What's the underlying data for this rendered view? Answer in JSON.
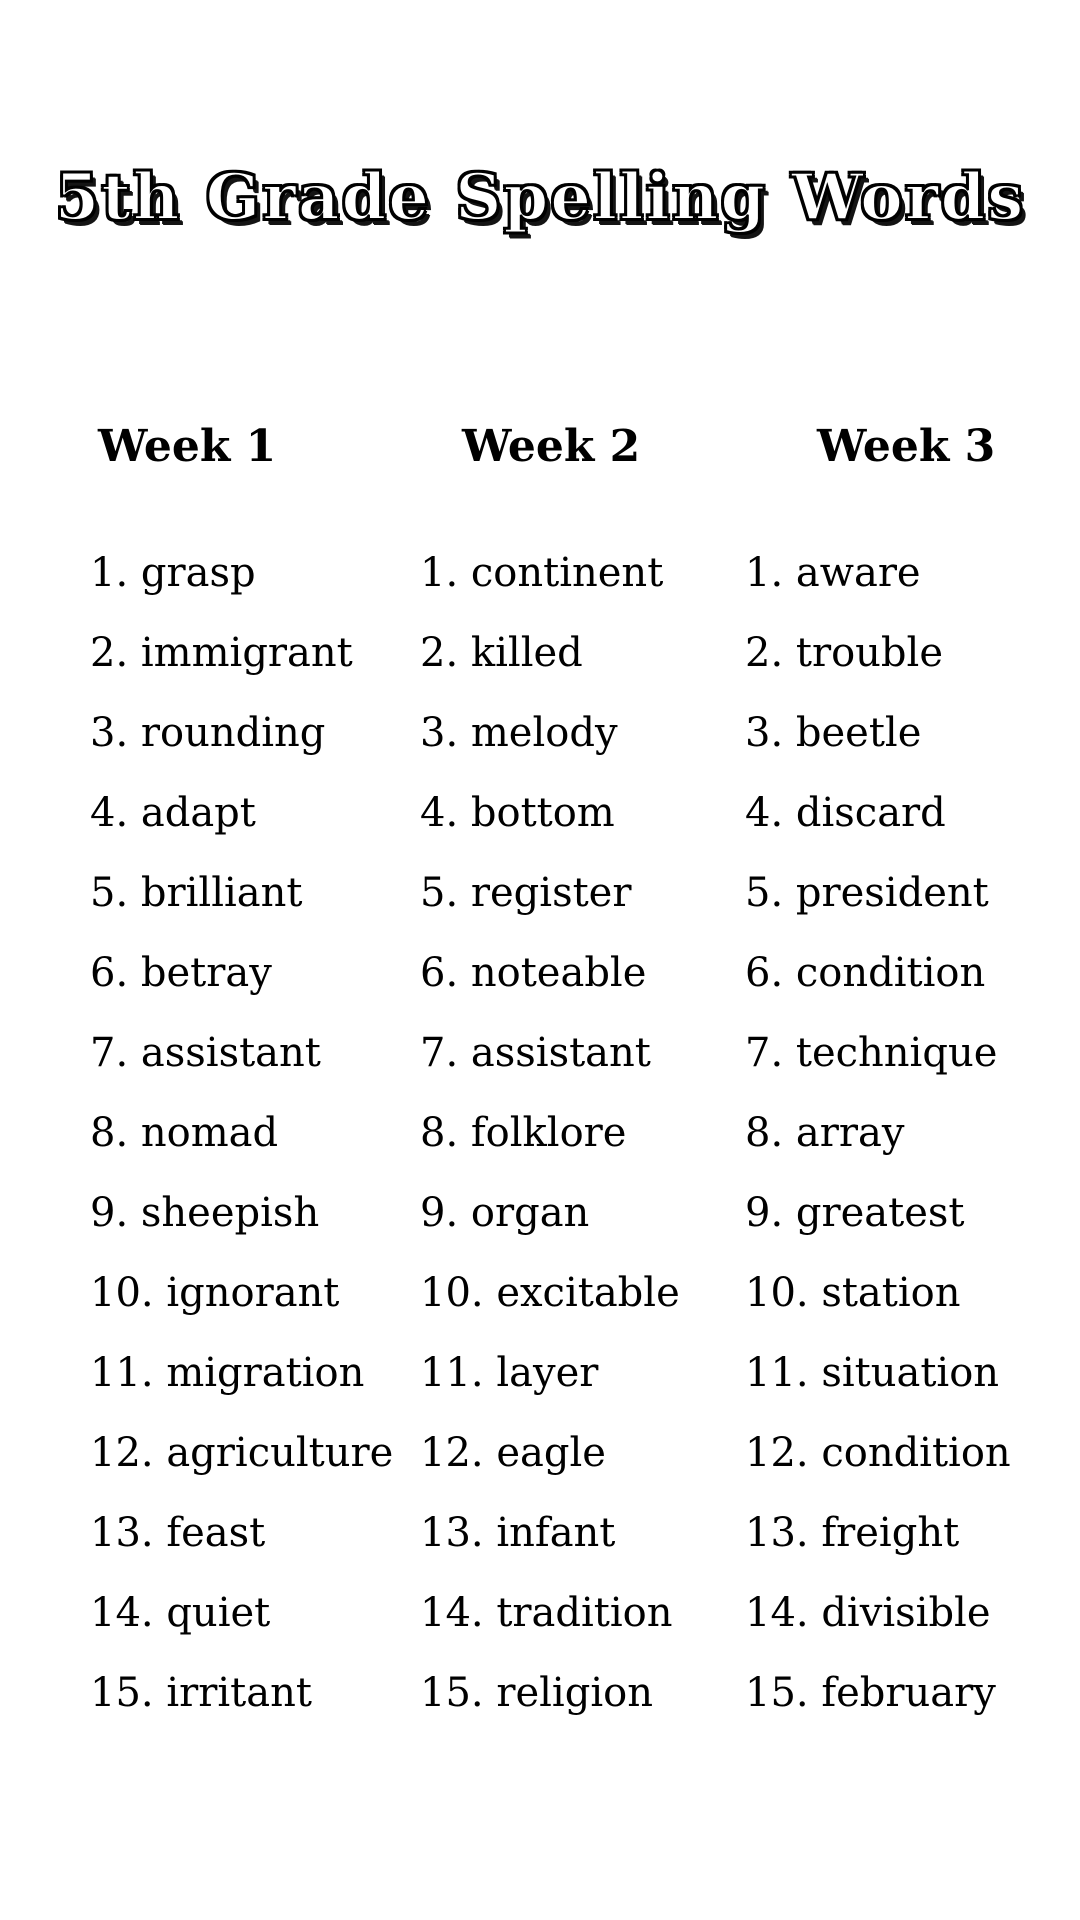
{
  "document": {
    "title": "5th Grade Spelling Words",
    "columns": [
      {
        "header": "Week 1",
        "words": [
          "grasp",
          "immigrant",
          "rounding",
          "adapt",
          "brilliant",
          "betray",
          "assistant",
          "nomad",
          "sheepish",
          "ignorant",
          "migration",
          "agriculture",
          "feast",
          "quiet",
          "irritant"
        ]
      },
      {
        "header": "Week 2",
        "words": [
          "continent",
          "killed",
          "melody",
          "bottom",
          "register",
          "noteable",
          "assistant",
          "folklore",
          "organ",
          "excitable",
          "layer",
          "eagle",
          "infant",
          "tradition",
          "religion"
        ]
      },
      {
        "header": "Week 3",
        "words": [
          "aware",
          "trouble",
          "beetle",
          "discard",
          "president",
          "condition",
          "technique",
          "array",
          "greatest",
          "station",
          "situation",
          "condition",
          "freight",
          "divisible",
          "february"
        ]
      }
    ]
  },
  "style": {
    "background": "#ffffff",
    "text_color": "#000000"
  }
}
